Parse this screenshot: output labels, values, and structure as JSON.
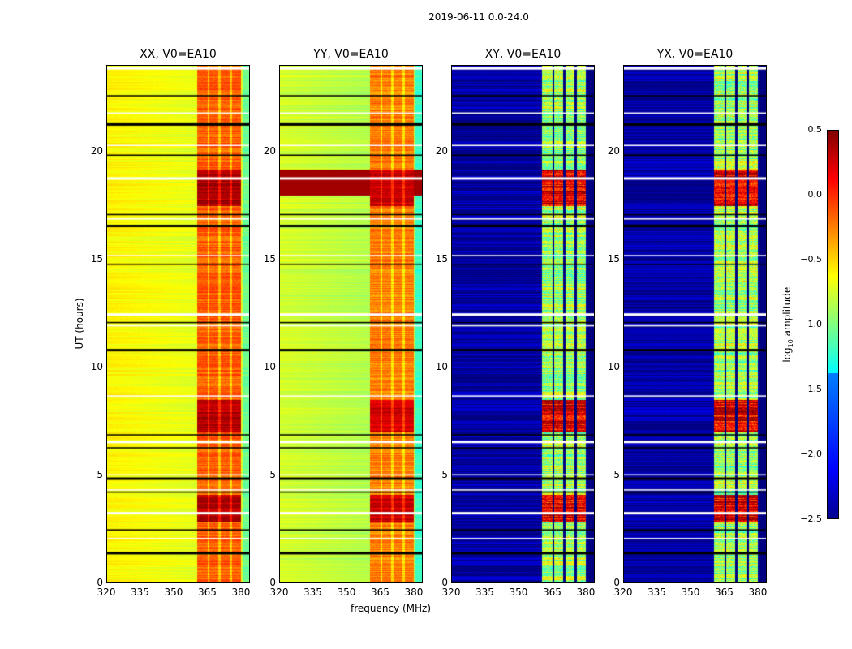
{
  "figure": {
    "suptitle": "2019-06-11 0.0-24.0"
  },
  "chart_data": {
    "type": "heatmap",
    "xlabel": "frequency (MHz)",
    "ylabel": "UT (hours)",
    "xlim": [
      320,
      384
    ],
    "ylim": [
      0,
      24
    ],
    "xticks": [
      "320",
      "335",
      "350",
      "365",
      "380"
    ],
    "yticks": [
      "0",
      "5",
      "10",
      "15",
      "20"
    ],
    "panels": [
      {
        "title": "XX, V0=EA10",
        "base_level": -0.6,
        "band_level": -0.15
      },
      {
        "title": "YY, V0=EA10",
        "base_level": -0.75,
        "band_level": -0.25
      },
      {
        "title": "XY, V0=EA10",
        "base_level": -2.4,
        "band_level": -0.9
      },
      {
        "title": "YX, V0=EA10",
        "base_level": -2.4,
        "band_level": -0.9
      }
    ],
    "band_mhz": [
      360.5,
      380
    ],
    "subband_edges_mhz": [
      365.5,
      370.6,
      375.6
    ],
    "strong_hours": [
      [
        17.5,
        19.2
      ],
      [
        7.0,
        8.5
      ],
      [
        2.8,
        4.1
      ]
    ],
    "flagged_hours": [
      1.45,
      2.1,
      2.5,
      3.3,
      4.25,
      4.35,
      4.9,
      5.05,
      6.3,
      6.6,
      6.9,
      8.7,
      10.85,
      11.95,
      12.1,
      12.5,
      14.8,
      15.2,
      16.6,
      16.9,
      17.1,
      18.8,
      19.85,
      20.3,
      21.3,
      21.8,
      22.6,
      23.9
    ],
    "colorbar": {
      "label": "log10 amplitude",
      "label_main": "log",
      "label_sub": "10",
      "label_tail": " amplitude",
      "range": [
        -2.5,
        0.5
      ],
      "ticks": [
        "0.5",
        "0.0",
        "−0.5",
        "−1.0",
        "−1.5",
        "−2.0",
        "−2.5"
      ]
    }
  }
}
